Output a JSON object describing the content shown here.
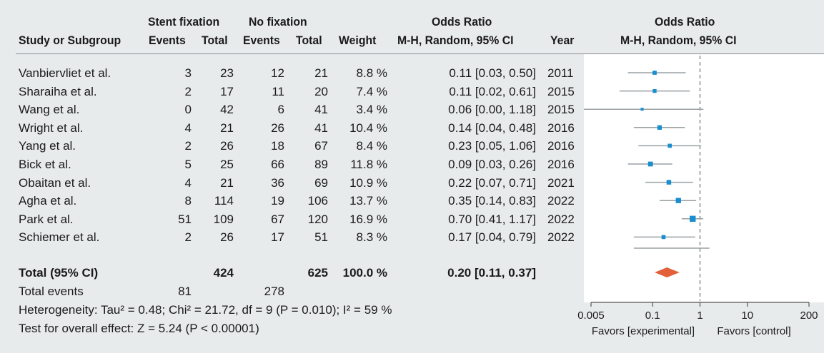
{
  "header": {
    "group1": "Stent fixation",
    "group2": "No fixation",
    "or_title_left": "Odds Ratio",
    "or_title_right": "Odds Ratio",
    "col_study": "Study or Subgroup",
    "col_events1": "Events",
    "col_total1": "Total",
    "col_events2": "Events",
    "col_total2": "Total",
    "col_weight": "Weight",
    "col_method_left": "M-H, Random, 95% CI",
    "col_year": "Year",
    "col_method_right": "M-H, Random, 95% CI"
  },
  "studies": [
    {
      "name": "Vanbiervliet et al.",
      "e1": "3",
      "t1": "23",
      "e2": "12",
      "t2": "21",
      "weight": "8.8 %",
      "ci": "0.11 [0.03, 0.50]",
      "year": "2011"
    },
    {
      "name": "Sharaiha et al.",
      "e1": "2",
      "t1": "17",
      "e2": "11",
      "t2": "20",
      "weight": "7.4 %",
      "ci": "0.11 [0.02, 0.61]",
      "year": "2015"
    },
    {
      "name": "Wang et al.",
      "e1": "0",
      "t1": "42",
      "e2": "6",
      "t2": "41",
      "weight": "3.4 %",
      "ci": "0.06 [0.00, 1.18]",
      "year": "2015"
    },
    {
      "name": "Wright et al.",
      "e1": "4",
      "t1": "21",
      "e2": "26",
      "t2": "41",
      "weight": "10.4 %",
      "ci": "0.14 [0.04, 0.48]",
      "year": "2016"
    },
    {
      "name": "Yang et al.",
      "e1": "2",
      "t1": "26",
      "e2": "18",
      "t2": "67",
      "weight": "8.4 %",
      "ci": "0.23 [0.05, 1.06]",
      "year": "2016"
    },
    {
      "name": "Bick et al.",
      "e1": "5",
      "t1": "25",
      "e2": "66",
      "t2": "89",
      "weight": "11.8 %",
      "ci": "0.09 [0.03, 0.26]",
      "year": "2016"
    },
    {
      "name": "Obaitan et al.",
      "e1": "4",
      "t1": "21",
      "e2": "36",
      "t2": "69",
      "weight": "10.9 %",
      "ci": "0.22 [0.07, 0.71]",
      "year": "2021"
    },
    {
      "name": "Agha et al.",
      "e1": "8",
      "t1": "114",
      "e2": "19",
      "t2": "106",
      "weight": "13.7 %",
      "ci": "0.35 [0.14, 0.83]",
      "year": "2022"
    },
    {
      "name": "Park et al.",
      "e1": "51",
      "t1": "109",
      "e2": "67",
      "t2": "120",
      "weight": "16.9 %",
      "ci": "0.70 [0.41, 1.17]",
      "year": "2022"
    },
    {
      "name": "Schiemer et al.",
      "e1": "2",
      "t1": "26",
      "e2": "17",
      "t2": "51",
      "weight": "8.3 %",
      "ci": "0.17 [0.04, 0.79]",
      "year": "2022"
    }
  ],
  "total": {
    "label": "Total (95% CI)",
    "t1": "424",
    "t2": "625",
    "weight": "100.0 %",
    "ci": "0.20 [0.11, 0.37]"
  },
  "events": {
    "label": "Total events",
    "e1": "81",
    "e2": "278"
  },
  "heterogeneity": "Heterogeneity: Tau² = 0.48; Chi² = 21.72, df = 9 (P = 0.010); I² = 59 %",
  "overall": "Test for overall effect: Z = 5.24 (P < 0.00001)",
  "chart_data": {
    "type": "forest",
    "scale": "log",
    "xlim": [
      0.005,
      200
    ],
    "ticks": [
      "0.005",
      "0.1",
      "1",
      "10",
      "200"
    ],
    "tick_values": [
      0.005,
      0.1,
      1,
      10,
      200
    ],
    "reference_line": 1,
    "favors_left": "Favors [experimental]",
    "favors_right": "Favors [control]",
    "points": [
      {
        "or": 0.11,
        "lo": 0.03,
        "hi": 0.5,
        "weight": 8.8
      },
      {
        "or": 0.11,
        "lo": 0.02,
        "hi": 0.61,
        "weight": 7.4
      },
      {
        "or": 0.06,
        "lo": 0.0,
        "hi": 1.18,
        "weight": 3.4
      },
      {
        "or": 0.14,
        "lo": 0.04,
        "hi": 0.48,
        "weight": 10.4
      },
      {
        "or": 0.23,
        "lo": 0.05,
        "hi": 1.06,
        "weight": 8.4
      },
      {
        "or": 0.09,
        "lo": 0.03,
        "hi": 0.26,
        "weight": 11.8
      },
      {
        "or": 0.22,
        "lo": 0.07,
        "hi": 0.71,
        "weight": 10.9
      },
      {
        "or": 0.35,
        "lo": 0.14,
        "hi": 0.83,
        "weight": 13.7
      },
      {
        "or": 0.7,
        "lo": 0.41,
        "hi": 1.17,
        "weight": 16.9
      },
      {
        "or": 0.17,
        "lo": 0.04,
        "hi": 0.79,
        "weight": 8.3
      }
    ],
    "pooled": {
      "or": 0.2,
      "lo": 0.11,
      "hi": 0.37
    },
    "colors": {
      "marker": "#1a8fd0",
      "diamond": "#e2603a",
      "whisker": "#9aa0a3",
      "axis": "#555555"
    }
  }
}
